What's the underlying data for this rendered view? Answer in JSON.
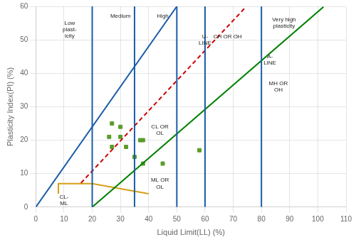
{
  "chart_data": {
    "type": "scatter",
    "xlabel": "Liquid Limit(LL) (%)",
    "ylabel": "Plasticity Index(PI) (%)",
    "xlim": [
      0,
      110
    ],
    "ylim": [
      0,
      60
    ],
    "xticks": [
      0,
      10,
      20,
      30,
      40,
      50,
      60,
      70,
      80,
      90,
      100,
      110
    ],
    "yticks": [
      0,
      10,
      20,
      30,
      40,
      50,
      60
    ],
    "grid": true,
    "series": [
      {
        "type": "line",
        "x": [
          20,
          20
        ],
        "values": [
          0,
          60
        ],
        "color": "#1a5ca8",
        "line_style": "solid"
      },
      {
        "type": "line",
        "x": [
          35,
          35
        ],
        "values": [
          0,
          60
        ],
        "color": "#1a5ca8",
        "line_style": "solid"
      },
      {
        "type": "line",
        "x": [
          50,
          50
        ],
        "values": [
          0,
          60
        ],
        "color": "#1a5ca8",
        "line_style": "solid"
      },
      {
        "type": "line",
        "x": [
          60,
          60
        ],
        "values": [
          0,
          60
        ],
        "color": "#1a5ca8",
        "line_style": "solid"
      },
      {
        "type": "line",
        "x": [
          80,
          80
        ],
        "values": [
          0,
          60
        ],
        "color": "#1a5ca8",
        "line_style": "solid"
      },
      {
        "type": "line",
        "x": [
          0,
          50
        ],
        "values": [
          0,
          60
        ],
        "color": "#1a5ca8",
        "line_style": "solid"
      },
      {
        "type": "line",
        "x": [
          20,
          102
        ],
        "values": [
          0,
          59.86
        ],
        "color": "#008000",
        "line_style": "solid"
      },
      {
        "type": "line",
        "x": [
          16,
          74
        ],
        "values": [
          7.2,
          59.4
        ],
        "color": "#cc0000",
        "line_style": "dashed"
      },
      {
        "type": "line",
        "x": [
          8,
          8,
          20,
          40,
          40
        ],
        "values": [
          4,
          7,
          7,
          4,
          4
        ],
        "color": "#d4a017",
        "line_style": "solid"
      },
      {
        "type": "scatter",
        "x": [
          27,
          26,
          27,
          30,
          30,
          32,
          35,
          37,
          38,
          38,
          45,
          58
        ],
        "values": [
          25,
          21,
          18,
          24,
          21,
          18,
          15,
          20,
          20,
          13,
          13,
          17
        ],
        "color": "#5a9c2a",
        "marker": "square"
      }
    ],
    "annotations": [
      {
        "text": "Low\nplast-\nicity",
        "x": 12,
        "y": 53
      },
      {
        "text": "Medium",
        "x": 30,
        "y": 57
      },
      {
        "text": "High",
        "x": 45,
        "y": 57
      },
      {
        "text": "Very high\nplasticity",
        "x": 88,
        "y": 55
      },
      {
        "text": "CL OR\nOL",
        "x": 44,
        "y": 23
      },
      {
        "text": "ML OR\nOL",
        "x": 44,
        "y": 7
      },
      {
        "text": "CH OR OH",
        "x": 68,
        "y": 51
      },
      {
        "text": "MH OR\nOH",
        "x": 86,
        "y": 36
      },
      {
        "text": "CL-\nML",
        "x": 10,
        "y": 2
      },
      {
        "text": "U-\nLINE",
        "x": 60,
        "y": 50
      },
      {
        "text": "A-\nLINE",
        "x": 83,
        "y": 44
      }
    ]
  }
}
